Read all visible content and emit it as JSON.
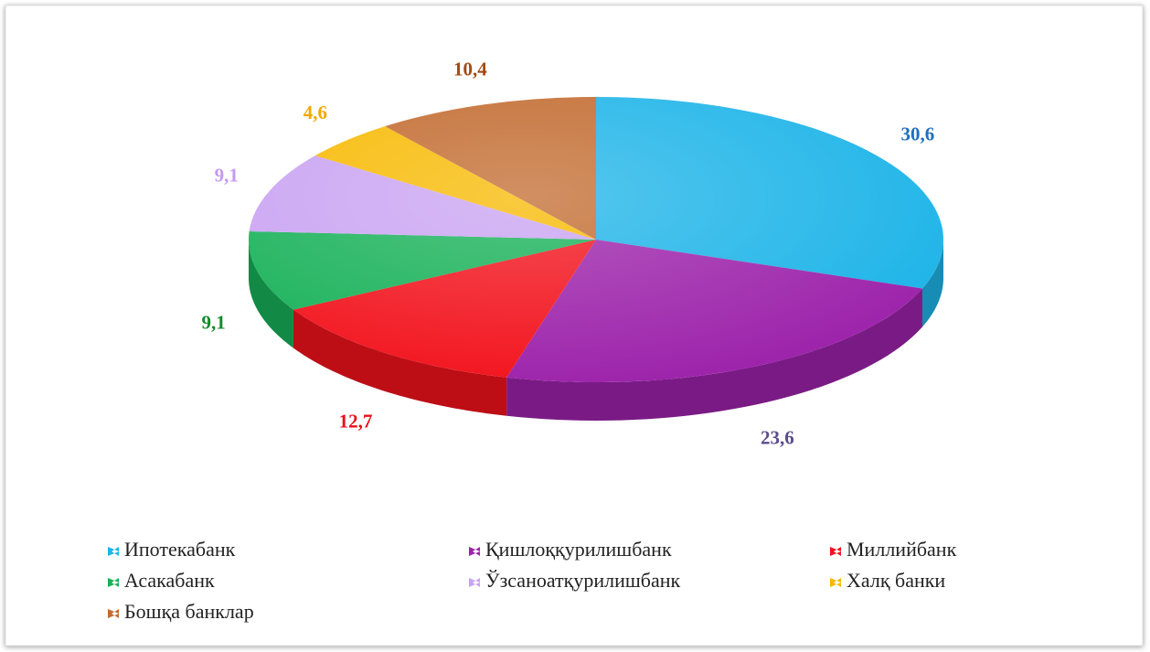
{
  "chart_data": {
    "type": "pie",
    "categories": [
      "Ипотекабанк",
      "Қишлоққурилишбанк",
      "Миллийбанк",
      "Асакабанк",
      "Ўзсаноатқурилишбанк",
      "Халқ банки",
      "Бошқа банклар"
    ],
    "values": [
      30.6,
      23.6,
      12.7,
      9.1,
      9.1,
      4.6,
      10.4
    ],
    "value_labels": [
      "30,6",
      "23,6",
      "12,7",
      "9,1",
      "9,1",
      "4,6",
      "10,4"
    ],
    "colors": [
      "#1db4e8",
      "#9c22aa",
      "#f2121c",
      "#17b158",
      "#c9a2f2",
      "#f7b900",
      "#c26a2e"
    ],
    "label_colors": [
      "#1f6fbf",
      "#5b4c8c",
      "#e8101a",
      "#138a2a",
      "#c59af0",
      "#f2a800",
      "#a44a12"
    ],
    "legend": "bottom"
  }
}
